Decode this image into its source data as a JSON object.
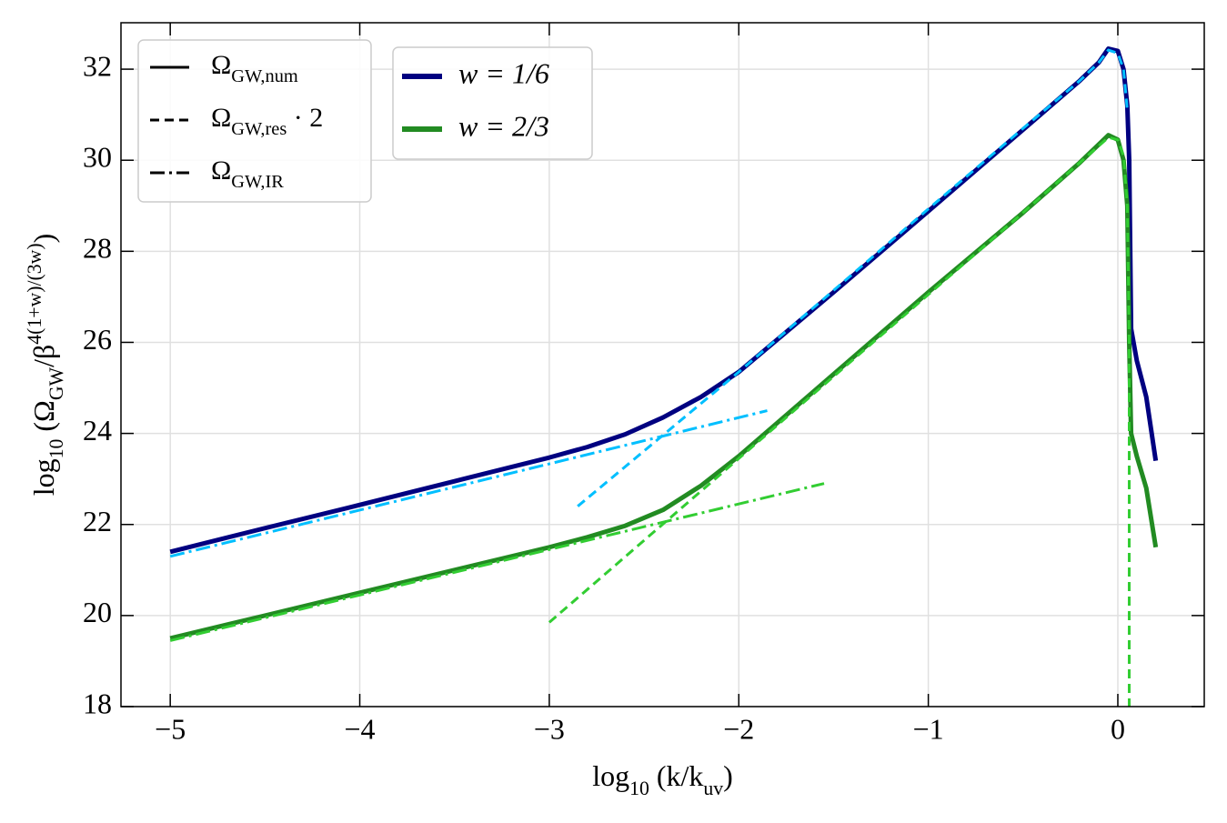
{
  "chart_data": {
    "type": "line",
    "xlabel": [
      {
        "t": "log"
      },
      {
        "t": "10",
        "sub": true
      },
      {
        "t": " (k/k"
      },
      {
        "t": "uv",
        "sub": true
      },
      {
        "t": ")"
      }
    ],
    "ylabel": [
      {
        "t": "log"
      },
      {
        "t": "10",
        "sub": true
      },
      {
        "t": " (Ω"
      },
      {
        "t": "GW",
        "sub": true
      },
      {
        "t": "/β"
      },
      {
        "t": "4(1+w)/(3w)",
        "sup": true
      },
      {
        "t": ")"
      }
    ],
    "xlim": [
      -5.26,
      0.456
    ],
    "ylim": [
      18,
      33.02
    ],
    "xticks": [
      {
        "value": -5,
        "label": "−5"
      },
      {
        "value": -4,
        "label": "−4"
      },
      {
        "value": -3,
        "label": "−3"
      },
      {
        "value": -2,
        "label": "−2"
      },
      {
        "value": -1,
        "label": "−1"
      },
      0
    ],
    "yticks": [
      18,
      20,
      22,
      24,
      26,
      28,
      30,
      32
    ],
    "grid": true,
    "style_legend": [
      {
        "dash": "solid",
        "label": [
          {
            "t": "Ω"
          },
          {
            "t": "GW,num",
            "sub": true
          }
        ]
      },
      {
        "dash": "dashed",
        "label": [
          {
            "t": "Ω"
          },
          {
            "t": "GW,res",
            "sub": true
          },
          {
            "t": " · 2"
          }
        ]
      },
      {
        "dash": "dashdot",
        "label": [
          {
            "t": "Ω"
          },
          {
            "t": "GW,IR",
            "sub": true
          }
        ]
      }
    ],
    "series": [
      {
        "name": "w = 1/6",
        "color": "#000080",
        "dash": "solid",
        "width": 5,
        "x": [
          -5,
          -4.5,
          -4,
          -3.5,
          -3,
          -2.8,
          -2.6,
          -2.4,
          -2.2,
          -2,
          -1.5,
          -1,
          -0.5,
          -0.2,
          -0.1,
          -0.05,
          0,
          0.03,
          0.05,
          0.06,
          0.07,
          0.1,
          0.15,
          0.2
        ],
        "values": [
          21.4,
          21.92,
          22.43,
          22.95,
          23.47,
          23.7,
          23.98,
          24.35,
          24.8,
          25.35,
          27.1,
          28.88,
          30.67,
          31.75,
          32.15,
          32.45,
          32.4,
          32.0,
          31.2,
          30.0,
          26.3,
          25.6,
          24.8,
          23.4
        ]
      },
      {
        "name": "w = 2/3",
        "color": "#228b22",
        "dash": "solid",
        "width": 5,
        "x": [
          -5,
          -4.5,
          -4,
          -3.5,
          -3,
          -2.8,
          -2.6,
          -2.4,
          -2.2,
          -2,
          -1.5,
          -1,
          -0.5,
          -0.2,
          -0.1,
          -0.05,
          0,
          0.03,
          0.05,
          0.06,
          0.07,
          0.1,
          0.15,
          0.2
        ],
        "values": [
          19.5,
          20.0,
          20.5,
          21.0,
          21.5,
          21.72,
          21.97,
          22.32,
          22.85,
          23.5,
          25.3,
          27.1,
          28.85,
          29.95,
          30.35,
          30.55,
          30.45,
          30.0,
          29.0,
          26.0,
          24.0,
          23.5,
          22.8,
          21.5
        ]
      },
      {
        "color": "#00bfff",
        "dash": "dashed",
        "width": 3,
        "x": [
          -2.85,
          -2,
          -1,
          -0.5,
          -0.2,
          -0.1,
          -0.05,
          0,
          0.03,
          0.05
        ],
        "values": [
          22.4,
          25.35,
          28.93,
          30.7,
          31.75,
          32.15,
          32.42,
          32.35,
          32.0,
          31.1
        ]
      },
      {
        "color": "#32cd32",
        "dash": "dashed",
        "width": 3,
        "x": [
          -3,
          -2,
          -1,
          -0.5,
          -0.2,
          -0.05,
          0,
          0.03,
          0.05,
          0.06,
          0.06
        ],
        "values": [
          19.85,
          23.45,
          27.05,
          28.85,
          29.95,
          30.5,
          30.45,
          30.1,
          29.0,
          26.0,
          18
        ]
      },
      {
        "color": "#00bfff",
        "dash": "dashdot",
        "width": 3,
        "x": [
          -5,
          -1.85
        ],
        "values": [
          21.3,
          24.5
        ]
      },
      {
        "color": "#32cd32",
        "dash": "dashdot",
        "width": 3,
        "x": [
          -5,
          -1.55
        ],
        "values": [
          19.45,
          22.9
        ]
      }
    ]
  }
}
